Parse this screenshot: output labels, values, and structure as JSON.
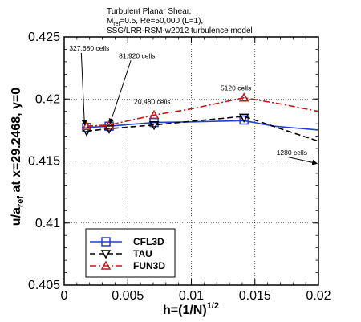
{
  "chart_data": {
    "type": "line",
    "title_lines": [
      "Turbulent Planar Shear,",
      "M",
      "=0.5, Re=50,000 (L=1),",
      "SSG/LRR-RSM-w2012 turbulence model"
    ],
    "title_sub": "ref",
    "xlabel": "h=(1/N)",
    "xlabel_sup": "1/2",
    "ylabel": "u/a",
    "ylabel_sub": "ref",
    "ylabel_tail": " at x=29.2468, y=0",
    "xlim": [
      0,
      0.02
    ],
    "ylim": [
      0.405,
      0.425
    ],
    "x_ticks": [
      0,
      0.005,
      0.01,
      0.015,
      0.02
    ],
    "x_tick_labels": [
      "0",
      "0.005",
      "0.01",
      "0.015",
      "0.02"
    ],
    "y_ticks": [
      0.405,
      0.41,
      0.415,
      0.42,
      0.425
    ],
    "y_tick_labels": [
      "0.405",
      "0.41",
      "0.415",
      "0.42",
      "0.425"
    ],
    "grid": true,
    "legend_position": "bottom-left",
    "series": [
      {
        "name": "CFL3D",
        "color": "#1f3fd6",
        "marker": "square",
        "dash": "solid",
        "points": [
          [
            0.001768,
            0.4177
          ],
          [
            0.003536,
            0.4178
          ],
          [
            0.007071,
            0.4181
          ],
          [
            0.014142,
            0.4183
          ]
        ],
        "trend": [
          [
            0.001768,
            0.4177
          ],
          [
            0.003536,
            0.4178
          ],
          [
            0.007071,
            0.4181
          ],
          [
            0.01,
            0.41815
          ],
          [
            0.014142,
            0.41825
          ],
          [
            0.0165,
            0.4178
          ],
          [
            0.02,
            0.4175
          ]
        ]
      },
      {
        "name": "TAU",
        "color": "#000000",
        "marker": "triangle-down",
        "dash": "dashed",
        "points": [
          [
            0.001768,
            0.4174
          ],
          [
            0.003536,
            0.4176
          ],
          [
            0.007071,
            0.4179
          ],
          [
            0.014142,
            0.4185
          ]
        ],
        "trend": [
          [
            0.001768,
            0.4174
          ],
          [
            0.003536,
            0.4176
          ],
          [
            0.007071,
            0.4179
          ],
          [
            0.01,
            0.4182
          ],
          [
            0.014142,
            0.4186
          ],
          [
            0.017,
            0.4176
          ],
          [
            0.02,
            0.4166
          ]
        ]
      },
      {
        "name": "FUN3D",
        "color": "#c01818",
        "marker": "triangle-up",
        "dash": "dashdot",
        "points": [
          [
            0.001768,
            0.4178
          ],
          [
            0.003536,
            0.4179
          ],
          [
            0.007071,
            0.4187
          ],
          [
            0.014142,
            0.4201
          ]
        ],
        "trend": [
          [
            0.001768,
            0.4178
          ],
          [
            0.003536,
            0.4179
          ],
          [
            0.007071,
            0.4187
          ],
          [
            0.01,
            0.4192
          ],
          [
            0.014142,
            0.4201
          ],
          [
            0.017,
            0.4196
          ],
          [
            0.02,
            0.419
          ]
        ]
      }
    ],
    "annotations": [
      {
        "text": "327,680 cells",
        "x": 0.0004,
        "y": 0.4239,
        "arrow_to": [
          0.0016,
          0.4179
        ]
      },
      {
        "text": "81,920 cells",
        "x": 0.0043,
        "y": 0.4233,
        "arrow_to": [
          0.0036,
          0.418
        ]
      },
      {
        "text": "20,480 cells",
        "x": 0.0055,
        "y": 0.4196,
        "arrow_to": null
      },
      {
        "text": "5120 cells",
        "x": 0.0123,
        "y": 0.4207,
        "arrow_to": null
      },
      {
        "text": "1280 cells",
        "x": 0.0167,
        "y": 0.4155,
        "arrow_to": [
          0.0199,
          0.4148
        ]
      }
    ]
  }
}
